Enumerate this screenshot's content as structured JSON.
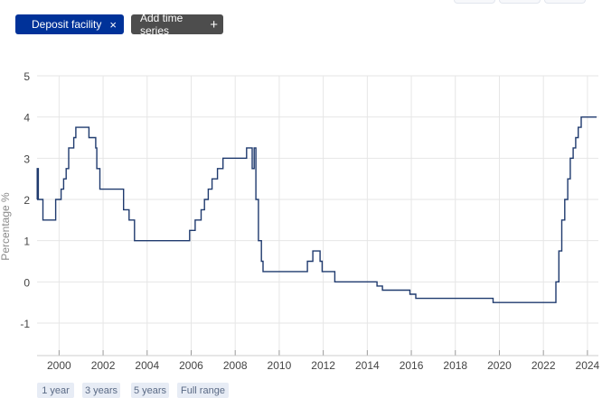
{
  "series_chip": {
    "label": "Deposit facility",
    "close_glyph": "×"
  },
  "add_chip": {
    "label": "Add time series",
    "plus_glyph": "+"
  },
  "range_buttons": [
    "1 year",
    "3 years",
    "5 years",
    "Full range"
  ],
  "colors": {
    "series_chip": "#003299",
    "add_chip": "#4d4d4d",
    "line": "#1f3a6e",
    "grid": "#e6e6e6"
  },
  "chart_data": {
    "type": "line",
    "title": "",
    "xlabel": "",
    "ylabel": "Percentage %",
    "ylim": [
      -1,
      5
    ],
    "xlim": [
      "1999-01-01",
      "2024-07-01"
    ],
    "grid": true,
    "y_ticks": [
      "5",
      "4",
      "3",
      "2",
      "1",
      "0",
      "-1"
    ],
    "x_ticks": [
      "2000",
      "2002",
      "2004",
      "2006",
      "2008",
      "2010",
      "2012",
      "2014",
      "2016",
      "2018",
      "2020",
      "2022",
      "2024"
    ],
    "series": [
      {
        "name": "Deposit facility",
        "points": [
          [
            "1999-01-01",
            2.0
          ],
          [
            "1999-01-04",
            2.75
          ],
          [
            "1999-01-22",
            2.0
          ],
          [
            "1999-04-09",
            1.5
          ],
          [
            "1999-11-05",
            2.0
          ],
          [
            "2000-02-04",
            2.25
          ],
          [
            "2000-03-17",
            2.5
          ],
          [
            "2000-04-28",
            2.75
          ],
          [
            "2000-06-09",
            3.25
          ],
          [
            "2000-09-01",
            3.5
          ],
          [
            "2000-10-06",
            3.75
          ],
          [
            "2001-05-11",
            3.5
          ],
          [
            "2001-08-31",
            3.25
          ],
          [
            "2001-09-18",
            2.75
          ],
          [
            "2001-11-09",
            2.25
          ],
          [
            "2002-12-06",
            1.75
          ],
          [
            "2003-03-07",
            1.5
          ],
          [
            "2003-06-06",
            1.0
          ],
          [
            "2005-12-06",
            1.25
          ],
          [
            "2006-03-08",
            1.5
          ],
          [
            "2006-06-15",
            1.75
          ],
          [
            "2006-08-09",
            2.0
          ],
          [
            "2006-10-11",
            2.25
          ],
          [
            "2006-12-13",
            2.5
          ],
          [
            "2007-03-14",
            2.75
          ],
          [
            "2007-06-13",
            3.0
          ],
          [
            "2008-07-09",
            3.25
          ],
          [
            "2008-10-09",
            2.75
          ],
          [
            "2008-11-12",
            3.25
          ],
          [
            "2008-12-10",
            2.0
          ],
          [
            "2009-01-21",
            1.0
          ],
          [
            "2009-03-11",
            0.5
          ],
          [
            "2009-04-08",
            0.25
          ],
          [
            "2011-04-13",
            0.5
          ],
          [
            "2011-07-13",
            0.75
          ],
          [
            "2011-11-09",
            0.5
          ],
          [
            "2011-12-14",
            0.25
          ],
          [
            "2012-07-11",
            0.0
          ],
          [
            "2014-06-11",
            -0.1
          ],
          [
            "2014-09-10",
            -0.2
          ],
          [
            "2015-12-09",
            -0.3
          ],
          [
            "2016-03-16",
            -0.4
          ],
          [
            "2019-09-18",
            -0.5
          ],
          [
            "2022-07-27",
            0.0
          ],
          [
            "2022-09-14",
            0.75
          ],
          [
            "2022-11-02",
            1.5
          ],
          [
            "2022-12-21",
            2.0
          ],
          [
            "2023-02-08",
            2.5
          ],
          [
            "2023-03-22",
            3.0
          ],
          [
            "2023-05-10",
            3.25
          ],
          [
            "2023-06-21",
            3.5
          ],
          [
            "2023-08-02",
            3.75
          ],
          [
            "2023-09-20",
            4.0
          ],
          [
            "2024-06-01",
            4.0
          ]
        ]
      }
    ]
  }
}
